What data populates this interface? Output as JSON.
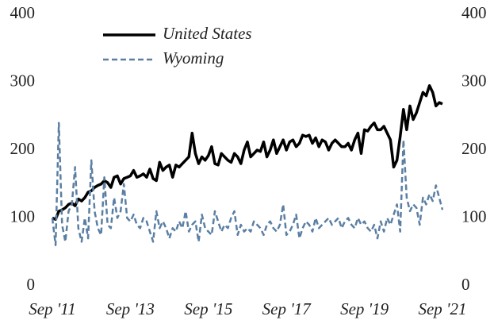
{
  "chart_data": {
    "type": "line",
    "categories": [
      "Sep '11",
      null,
      null,
      null,
      null,
      null,
      null,
      null,
      null,
      null,
      null,
      null,
      null,
      null,
      null,
      null,
      null,
      null,
      null,
      null,
      null,
      null,
      null,
      null,
      "Sep '13",
      null,
      null,
      null,
      null,
      null,
      null,
      null,
      null,
      null,
      null,
      null,
      null,
      null,
      null,
      null,
      null,
      null,
      null,
      null,
      null,
      null,
      null,
      null,
      "Sep '15",
      null,
      null,
      null,
      null,
      null,
      null,
      null,
      null,
      null,
      null,
      null,
      null,
      null,
      null,
      null,
      null,
      null,
      null,
      null,
      null,
      null,
      null,
      null,
      "Sep '17",
      null,
      null,
      null,
      null,
      null,
      null,
      null,
      null,
      null,
      null,
      null,
      null,
      null,
      null,
      null,
      null,
      null,
      null,
      null,
      null,
      null,
      null,
      null,
      "Sep '19",
      null,
      null,
      null,
      null,
      null,
      null,
      null,
      null,
      null,
      null,
      null,
      null,
      null,
      null,
      null,
      null,
      null,
      null,
      null,
      null,
      null,
      null,
      null,
      "Sep '21"
    ],
    "series": [
      {
        "name": "United States",
        "color": "#000000",
        "dash": false,
        "values": [
          100,
          98,
          110,
          112,
          115,
          120,
          122,
          118,
          128,
          125,
          130,
          138,
          140,
          145,
          148,
          150,
          155,
          152,
          145,
          160,
          162,
          150,
          158,
          160,
          162,
          170,
          160,
          162,
          165,
          160,
          172,
          158,
          155,
          182,
          170,
          175,
          178,
          160,
          178,
          175,
          180,
          185,
          190,
          225,
          195,
          180,
          190,
          185,
          192,
          205,
          180,
          178,
          195,
          190,
          185,
          182,
          195,
          190,
          180,
          200,
          212,
          190,
          195,
          200,
          198,
          212,
          190,
          200,
          215,
          195,
          205,
          215,
          200,
          212,
          215,
          205,
          210,
          222,
          220,
          222,
          210,
          218,
          205,
          215,
          212,
          200,
          210,
          215,
          210,
          205,
          205,
          210,
          200,
          215,
          225,
          195,
          230,
          228,
          235,
          240,
          230,
          230,
          235,
          225,
          215,
          175,
          185,
          220,
          260,
          230,
          265,
          245,
          255,
          270,
          285,
          280,
          295,
          285,
          265,
          270,
          268
        ]
      },
      {
        "name": "Wyoming",
        "color": "#5b7fa3",
        "dash": true,
        "values": [
          100,
          60,
          240,
          90,
          65,
          110,
          120,
          175,
          85,
          65,
          100,
          70,
          185,
          110,
          85,
          75,
          160,
          90,
          85,
          130,
          100,
          110,
          150,
          100,
          95,
          105,
          90,
          85,
          100,
          95,
          80,
          65,
          110,
          85,
          95,
          85,
          70,
          85,
          80,
          95,
          85,
          110,
          80,
          90,
          95,
          65,
          105,
          85,
          80,
          75,
          110,
          95,
          80,
          90,
          85,
          100,
          110,
          75,
          90,
          80,
          85,
          80,
          95,
          90,
          85,
          75,
          90,
          95,
          85,
          80,
          90,
          120,
          75,
          80,
          90,
          105,
          70,
          85,
          95,
          90,
          80,
          100,
          85,
          90,
          95,
          100,
          90,
          95,
          100,
          85,
          95,
          100,
          90,
          85,
          100,
          90,
          95,
          85,
          80,
          90,
          70,
          95,
          80,
          100,
          90,
          105,
          120,
          80,
          215,
          130,
          110,
          120,
          115,
          90,
          130,
          120,
          135,
          125,
          148,
          130,
          112
        ]
      }
    ],
    "ylim": [
      0,
      400
    ],
    "yticks": [
      0,
      100,
      200,
      300,
      400
    ],
    "y2lim": [
      0,
      400
    ],
    "y2ticks": [
      0,
      100,
      200,
      300,
      400
    ],
    "grid": false,
    "legend": "upper left"
  }
}
